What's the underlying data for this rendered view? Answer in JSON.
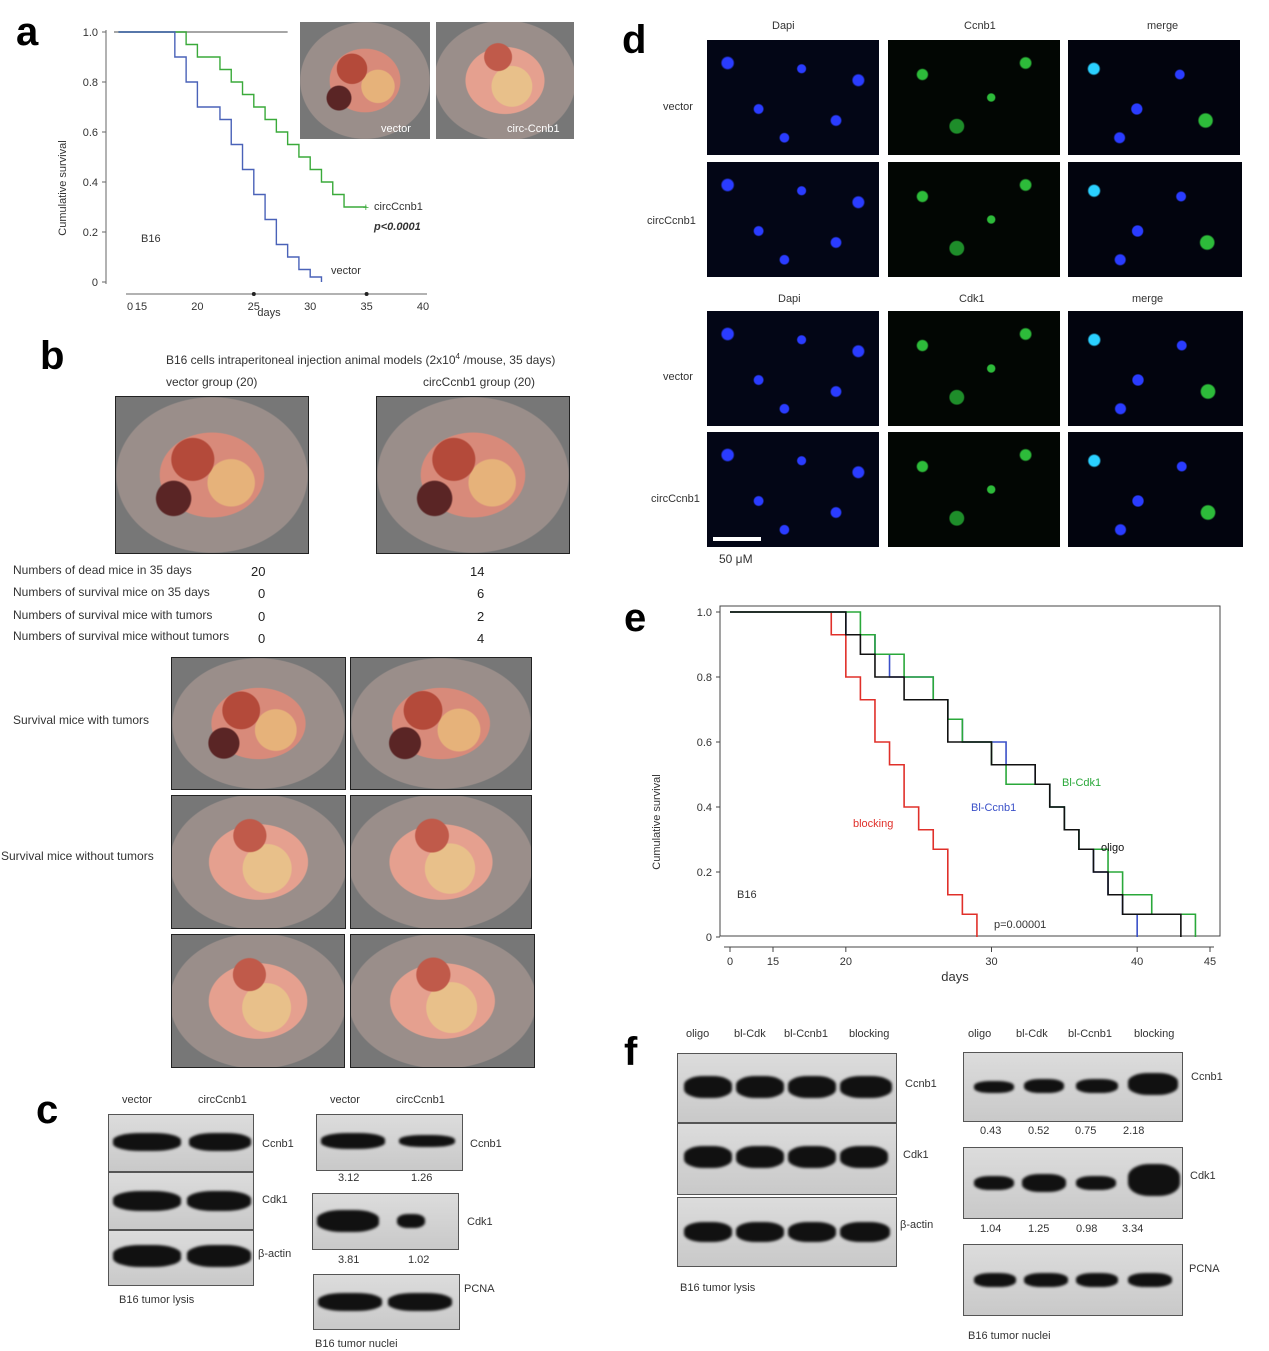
{
  "panels": {
    "a": "a",
    "b": "b",
    "c": "c",
    "d": "d",
    "e": "e",
    "f": "f"
  },
  "panel_a": {
    "ylabel": "Cumulative survival",
    "xlabel": "days",
    "yticks": [
      "0",
      "0.2",
      "0.4",
      "0.6",
      "0.8",
      "1.0"
    ],
    "xticks": [
      "0",
      "15",
      "20",
      "25",
      "30",
      "35",
      "40"
    ],
    "cell_label": "B16",
    "series_label_circ": "circCcnb1",
    "series_label_vector": "vector",
    "pvalue": "p<0.0001",
    "photo_labels": [
      "vector",
      "circ-Ccnb1"
    ],
    "colors": {
      "circ": "#3aaa3a",
      "vector": "#4a62b8"
    }
  },
  "panel_b": {
    "title": "B16 cells intraperitoneal injection animal models  (2x10",
    "title_sup": "4",
    "title_tail": " /mouse, 35 days)",
    "group_vector": "vector group (20)",
    "group_circ": "circCcnb1 group (20)",
    "rows": [
      {
        "label": "Numbers of dead mice in 35 days",
        "vector": "20",
        "circ": "14"
      },
      {
        "label": "Numbers of survival mice on 35 days",
        "vector": "0",
        "circ": "6"
      },
      {
        "label": "Numbers of survival mice with tumors",
        "vector": "0",
        "circ": "2"
      },
      {
        "label": "Numbers of survival mice without tumors",
        "vector": "0",
        "circ": "4"
      }
    ],
    "row_label_with": "Survival mice with tumors",
    "row_label_without": "Survival mice without tumors"
  },
  "panel_c": {
    "left_headers": [
      "vector",
      "circCcnb1"
    ],
    "left_rows": [
      "Ccnb1",
      "Cdk1",
      "β-actin"
    ],
    "left_caption": "B16 tumor lysis",
    "right_headers": [
      "vector",
      "circCcnb1"
    ],
    "right_rows": [
      "Ccnb1",
      "Cdk1",
      "PCNA"
    ],
    "ccnb1_values": [
      "3.12",
      "1.26"
    ],
    "cdk1_values": [
      "3.81",
      "1.02"
    ],
    "right_caption": "B16 tumor nuclei"
  },
  "panel_d": {
    "top_headers": [
      "Dapi",
      "Ccnb1",
      "merge"
    ],
    "bottom_headers": [
      "Dapi",
      "Cdk1",
      "merge"
    ],
    "row_labels": [
      "vector",
      "circCcnb1"
    ],
    "scale": "50 μM"
  },
  "panel_e": {
    "ylabel": "Cumulative survival",
    "xlabel": "days",
    "yticks": [
      "0",
      "0.2",
      "0.4",
      "0.6",
      "0.8",
      "1.0"
    ],
    "xticks": [
      "0",
      "15",
      "20",
      "30",
      "40",
      "45"
    ],
    "cell_label": "B16",
    "labels": {
      "blocking": "blocking",
      "bl_ccnb1": "Bl-Ccnb1",
      "bl_cdk1": "Bl-Cdk1",
      "oligo": "oligo"
    },
    "pvalue": "p=0.00001",
    "colors": {
      "blocking": "#e0302a",
      "bl_ccnb1": "#3a50c8",
      "bl_cdk1": "#2aa83a",
      "oligo": "#111111"
    }
  },
  "panel_f": {
    "left_headers": [
      "oligo",
      "bl-Cdk",
      "bl-Ccnb1",
      "blocking"
    ],
    "left_rows": [
      "Ccnb1",
      "Cdk1",
      "β-actin"
    ],
    "left_caption": "B16 tumor lysis",
    "right_headers": [
      "oligo",
      "bl-Cdk",
      "bl-Ccnb1",
      "blocking"
    ],
    "right_rows": [
      "Ccnb1",
      "Cdk1",
      "PCNA"
    ],
    "ccnb1_values": [
      "0.43",
      "0.52",
      "0.75",
      "2.18"
    ],
    "cdk1_values": [
      "1.04",
      "1.25",
      "0.98",
      "3.34"
    ],
    "right_caption": "B16 tumor nuclei"
  },
  "chart_data": [
    {
      "type": "line",
      "title": "",
      "xlabel": "days",
      "ylabel": "Cumulative survival",
      "xlim": [
        0,
        40
      ],
      "ylim": [
        0,
        1.0
      ],
      "series": [
        {
          "name": "circCcnb1",
          "x": [
            13,
            19,
            20,
            22,
            23,
            24,
            25,
            26,
            27,
            28,
            29,
            30,
            31,
            32,
            33,
            34,
            35
          ],
          "y": [
            1.0,
            0.95,
            0.9,
            0.85,
            0.8,
            0.75,
            0.7,
            0.65,
            0.6,
            0.55,
            0.5,
            0.45,
            0.4,
            0.35,
            0.3,
            0.3,
            0.3
          ]
        },
        {
          "name": "vector",
          "x": [
            13,
            18,
            19,
            20,
            22,
            23,
            24,
            25,
            26,
            27,
            28,
            29,
            30,
            31
          ],
          "y": [
            1.0,
            0.9,
            0.8,
            0.7,
            0.65,
            0.55,
            0.45,
            0.35,
            0.25,
            0.15,
            0.1,
            0.05,
            0.02,
            0.0
          ]
        }
      ]
    },
    {
      "type": "line",
      "title": "",
      "xlabel": "days",
      "ylabel": "Cumulative survival",
      "xlim": [
        0,
        45
      ],
      "ylim": [
        0,
        1.0
      ],
      "series": [
        {
          "name": "blocking",
          "x": [
            0,
            19,
            20,
            21,
            22,
            23,
            24,
            25,
            26,
            27,
            28,
            29
          ],
          "y": [
            1.0,
            0.93,
            0.8,
            0.73,
            0.6,
            0.53,
            0.4,
            0.33,
            0.27,
            0.13,
            0.07,
            0.0
          ]
        },
        {
          "name": "Bl-Ccnb1",
          "x": [
            0,
            20,
            21,
            22,
            23,
            24,
            26,
            27,
            28,
            30,
            31,
            33,
            34,
            35,
            36,
            37,
            38,
            39,
            40
          ],
          "y": [
            1.0,
            0.93,
            0.93,
            0.87,
            0.8,
            0.8,
            0.73,
            0.67,
            0.6,
            0.6,
            0.53,
            0.47,
            0.4,
            0.33,
            0.27,
            0.2,
            0.13,
            0.07,
            0.0
          ]
        },
        {
          "name": "Bl-Cdk1",
          "x": [
            0,
            20,
            21,
            22,
            23,
            24,
            25,
            26,
            27,
            28,
            30,
            31,
            32,
            33,
            34,
            35,
            36,
            37,
            38,
            39,
            40,
            41,
            42,
            43,
            44
          ],
          "y": [
            1.0,
            1.0,
            0.93,
            0.87,
            0.87,
            0.8,
            0.8,
            0.73,
            0.67,
            0.6,
            0.53,
            0.47,
            0.47,
            0.47,
            0.4,
            0.33,
            0.27,
            0.27,
            0.2,
            0.13,
            0.13,
            0.07,
            0.07,
            0.07,
            0.0
          ]
        },
        {
          "name": "oligo",
          "x": [
            0,
            20,
            21,
            22,
            24,
            25,
            27,
            29,
            30,
            31,
            33,
            34,
            35,
            36,
            37,
            38,
            39,
            40,
            41,
            42,
            43
          ],
          "y": [
            1.0,
            0.93,
            0.87,
            0.8,
            0.73,
            0.73,
            0.6,
            0.6,
            0.53,
            0.53,
            0.47,
            0.4,
            0.33,
            0.27,
            0.2,
            0.13,
            0.07,
            0.07,
            0.07,
            0.07,
            0.0
          ]
        }
      ]
    }
  ]
}
